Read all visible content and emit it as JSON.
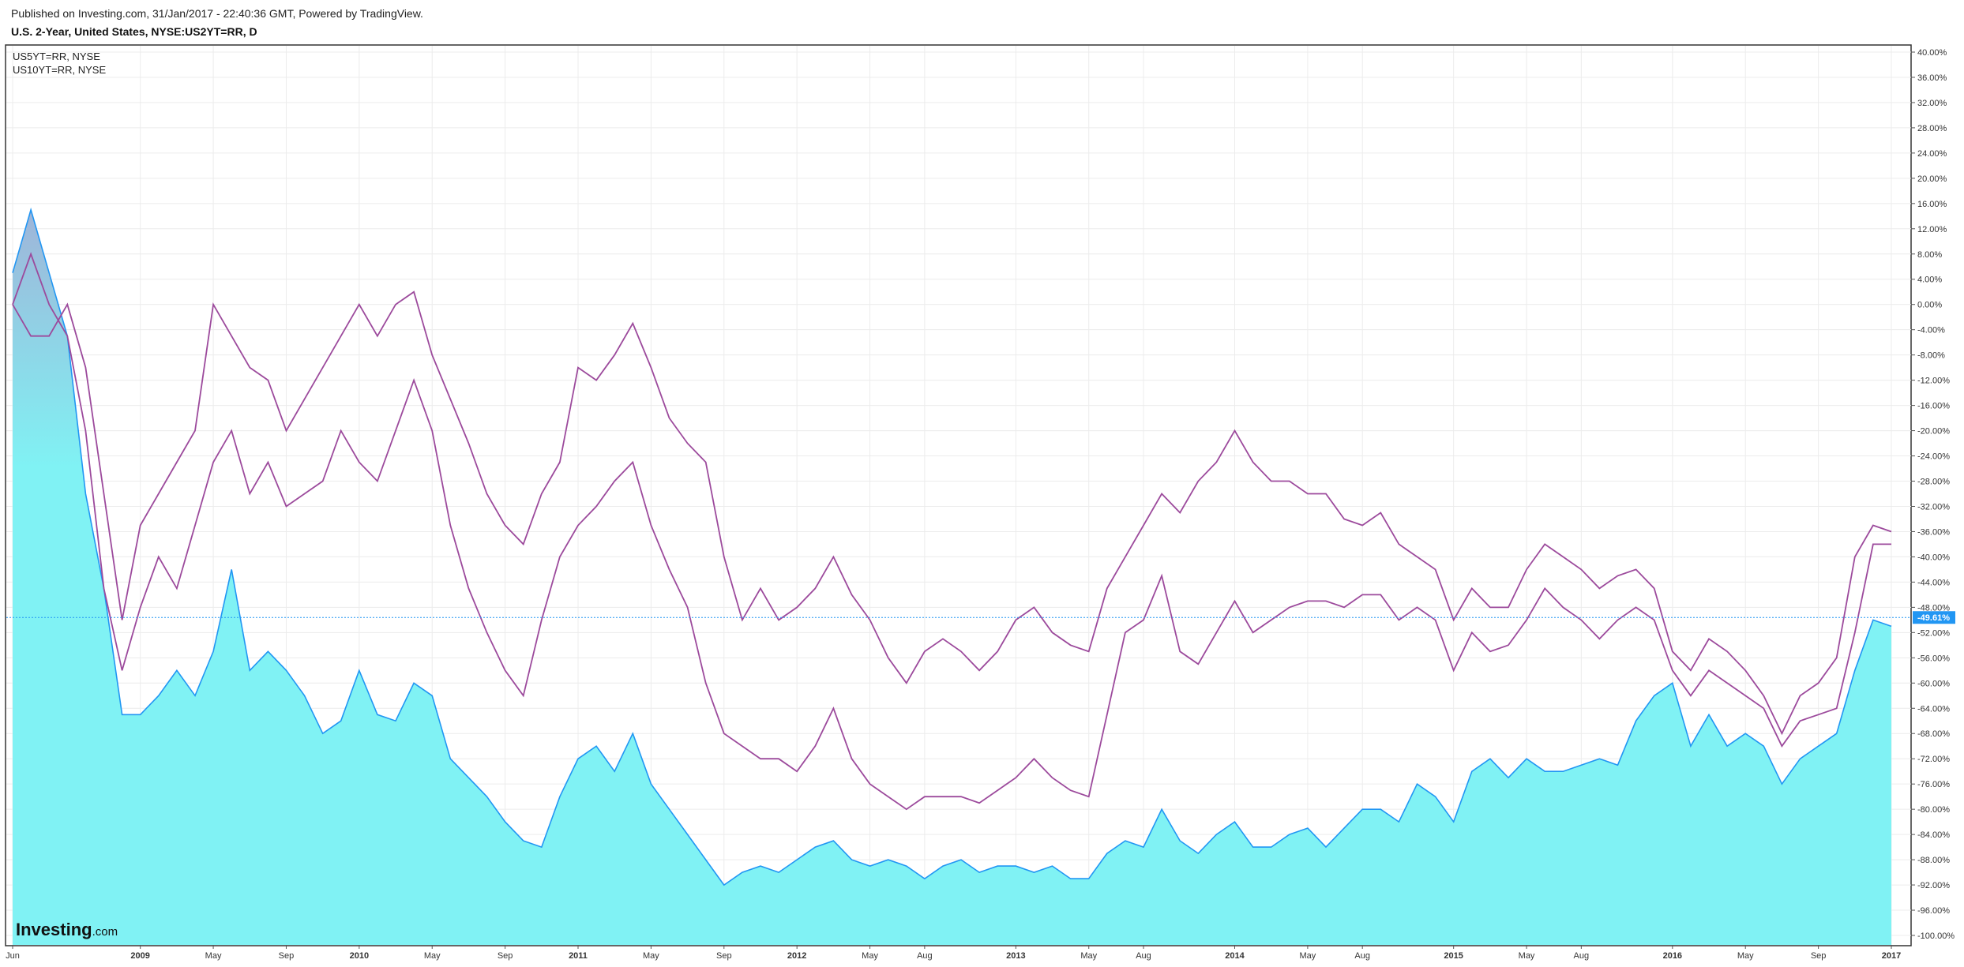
{
  "header": {
    "published": "Published on Investing.com, 31/Jan/2017 - 22:40:36 GMT, Powered by TradingView.",
    "symbol": "U.S. 2-Year, United States, NYSE:US2YT=RR, D"
  },
  "watermark": {
    "brand": "Investing",
    "suffix": ".com"
  },
  "chart_data": {
    "type": "line",
    "x": [
      "2008-06",
      "2008-07",
      "2008-08",
      "2008-09",
      "2008-10",
      "2008-11",
      "2008-12",
      "2009-01",
      "2009-02",
      "2009-03",
      "2009-04",
      "2009-05",
      "2009-06",
      "2009-07",
      "2009-08",
      "2009-09",
      "2009-10",
      "2009-11",
      "2009-12",
      "2010-01",
      "2010-02",
      "2010-03",
      "2010-04",
      "2010-05",
      "2010-06",
      "2010-07",
      "2010-08",
      "2010-09",
      "2010-10",
      "2010-11",
      "2010-12",
      "2011-01",
      "2011-02",
      "2011-03",
      "2011-04",
      "2011-05",
      "2011-06",
      "2011-07",
      "2011-08",
      "2011-09",
      "2011-10",
      "2011-11",
      "2011-12",
      "2012-01",
      "2012-02",
      "2012-03",
      "2012-04",
      "2012-05",
      "2012-06",
      "2012-07",
      "2012-08",
      "2012-09",
      "2012-10",
      "2012-11",
      "2012-12",
      "2013-01",
      "2013-02",
      "2013-03",
      "2013-04",
      "2013-05",
      "2013-06",
      "2013-07",
      "2013-08",
      "2013-09",
      "2013-10",
      "2013-11",
      "2013-12",
      "2014-01",
      "2014-02",
      "2014-03",
      "2014-04",
      "2014-05",
      "2014-06",
      "2014-07",
      "2014-08",
      "2014-09",
      "2014-10",
      "2014-11",
      "2014-12",
      "2015-01",
      "2015-02",
      "2015-03",
      "2015-04",
      "2015-05",
      "2015-06",
      "2015-07",
      "2015-08",
      "2015-09",
      "2015-10",
      "2015-11",
      "2015-12",
      "2016-01",
      "2016-02",
      "2016-03",
      "2016-04",
      "2016-05",
      "2016-06",
      "2016-07",
      "2016-08",
      "2016-09",
      "2016-10",
      "2016-11",
      "2016-12",
      "2017-01"
    ],
    "series": [
      {
        "kind": "area",
        "color": "#2196f3",
        "fill": "#80f2f4",
        "values": [
          5,
          15,
          5,
          -5,
          -30,
          -45,
          -65,
          -65,
          -62,
          -58,
          -62,
          -55,
          -42,
          -58,
          -55,
          -58,
          -62,
          -68,
          -66,
          -58,
          -65,
          -66,
          -60,
          -62,
          -72,
          -75,
          -78,
          -82,
          -85,
          -86,
          -78,
          -72,
          -70,
          -74,
          -68,
          -76,
          -80,
          -84,
          -88,
          -92,
          -90,
          -89,
          -90,
          -88,
          -86,
          -85,
          -88,
          -89,
          -88,
          -89,
          -91,
          -89,
          -88,
          -90,
          -89,
          -89,
          -90,
          -89,
          -91,
          -91,
          -87,
          -85,
          -86,
          -80,
          -85,
          -87,
          -84,
          -82,
          -86,
          -86,
          -84,
          -83,
          -86,
          -83,
          -80,
          -80,
          -82,
          -76,
          -78,
          -82,
          -74,
          -72,
          -75,
          -72,
          -74,
          -74,
          -73,
          -72,
          -73,
          -66,
          -62,
          -60,
          -70,
          -65,
          -70,
          -68,
          -70,
          -76,
          -72,
          -70,
          -68,
          -58,
          -50,
          -51
        ]
      },
      {
        "name": "US5YT=RR, NYSE",
        "color": "#9c4a9c",
        "values": [
          0,
          8,
          0,
          -5,
          -20,
          -45,
          -58,
          -48,
          -40,
          -45,
          -35,
          -25,
          -20,
          -30,
          -25,
          -32,
          -30,
          -28,
          -20,
          -25,
          -28,
          -20,
          -12,
          -20,
          -35,
          -45,
          -52,
          -58,
          -62,
          -50,
          -40,
          -35,
          -32,
          -28,
          -25,
          -35,
          -42,
          -48,
          -60,
          -68,
          -70,
          -72,
          -72,
          -74,
          -70,
          -64,
          -72,
          -76,
          -78,
          -80,
          -78,
          -78,
          -78,
          -79,
          -77,
          -75,
          -72,
          -75,
          -77,
          -78,
          -65,
          -52,
          -50,
          -43,
          -55,
          -57,
          -52,
          -47,
          -52,
          -50,
          -48,
          -47,
          -47,
          -48,
          -46,
          -46,
          -50,
          -48,
          -50,
          -58,
          -52,
          -55,
          -54,
          -50,
          -45,
          -48,
          -50,
          -53,
          -50,
          -48,
          -50,
          -58,
          -62,
          -58,
          -60,
          -62,
          -64,
          -70,
          -66,
          -65,
          -64,
          -52,
          -38,
          -38
        ]
      },
      {
        "name": "US10YT=RR, NYSE",
        "color": "#9c4a9c",
        "values": [
          0,
          -5,
          -5,
          0,
          -10,
          -30,
          -50,
          -35,
          -30,
          -25,
          -20,
          0,
          -5,
          -10,
          -12,
          -20,
          -15,
          -10,
          -5,
          0,
          -5,
          0,
          2,
          -8,
          -15,
          -22,
          -30,
          -35,
          -38,
          -30,
          -25,
          -10,
          -12,
          -8,
          -3,
          -10,
          -18,
          -22,
          -25,
          -40,
          -50,
          -45,
          -50,
          -48,
          -45,
          -40,
          -46,
          -50,
          -56,
          -60,
          -55,
          -53,
          -55,
          -58,
          -55,
          -50,
          -48,
          -52,
          -54,
          -55,
          -45,
          -40,
          -35,
          -30,
          -33,
          -28,
          -25,
          -20,
          -25,
          -28,
          -28,
          -30,
          -30,
          -34,
          -35,
          -33,
          -38,
          -40,
          -42,
          -50,
          -45,
          -48,
          -48,
          -42,
          -38,
          -40,
          -42,
          -45,
          -43,
          -42,
          -45,
          -55,
          -58,
          -53,
          -55,
          -58,
          -62,
          -68,
          -62,
          -60,
          -56,
          -40,
          -35,
          -36
        ]
      }
    ],
    "marker": {
      "value": -49.61,
      "label": "-49.61%"
    },
    "xlim": [
      "2008-06",
      "2017-01"
    ],
    "xticks": [
      {
        "value": "2008-06",
        "label": "Jun"
      },
      {
        "value": "2009-01",
        "label": "2009"
      },
      {
        "value": "2009-05",
        "label": "May"
      },
      {
        "value": "2009-09",
        "label": "Sep"
      },
      {
        "value": "2010-01",
        "label": "2010"
      },
      {
        "value": "2010-05",
        "label": "May"
      },
      {
        "value": "2010-09",
        "label": "Sep"
      },
      {
        "value": "2011-01",
        "label": "2011"
      },
      {
        "value": "2011-05",
        "label": "May"
      },
      {
        "value": "2011-09",
        "label": "Sep"
      },
      {
        "value": "2012-01",
        "label": "2012"
      },
      {
        "value": "2012-05",
        "label": "May"
      },
      {
        "value": "2012-08",
        "label": "Aug"
      },
      {
        "value": "2013-01",
        "label": "2013"
      },
      {
        "value": "2013-05",
        "label": "May"
      },
      {
        "value": "2013-08",
        "label": "Aug"
      },
      {
        "value": "2014-01",
        "label": "2014"
      },
      {
        "value": "2014-05",
        "label": "May"
      },
      {
        "value": "2014-08",
        "label": "Aug"
      },
      {
        "value": "2015-01",
        "label": "2015"
      },
      {
        "value": "2015-05",
        "label": "May"
      },
      {
        "value": "2015-08",
        "label": "Aug"
      },
      {
        "value": "2016-01",
        "label": "2016"
      },
      {
        "value": "2016-05",
        "label": "May"
      },
      {
        "value": "2016-09",
        "label": "Sep"
      },
      {
        "value": "2017-01",
        "label": "2017"
      }
    ],
    "ylim": [
      -101.5,
      41
    ],
    "yticks": [
      {
        "value": 40,
        "label": "40.00%"
      },
      {
        "value": 36,
        "label": "36.00%"
      },
      {
        "value": 32,
        "label": "32.00%"
      },
      {
        "value": 28,
        "label": "28.00%"
      },
      {
        "value": 24,
        "label": "24.00%"
      },
      {
        "value": 20,
        "label": "20.00%"
      },
      {
        "value": 16,
        "label": "16.00%"
      },
      {
        "value": 12,
        "label": "12.00%"
      },
      {
        "value": 8,
        "label": "8.00%"
      },
      {
        "value": 4,
        "label": "4.00%"
      },
      {
        "value": 0,
        "label": "0.00%"
      },
      {
        "value": -4,
        "label": "-4.00%"
      },
      {
        "value": -8,
        "label": "-8.00%"
      },
      {
        "value": -12,
        "label": "-12.00%"
      },
      {
        "value": -16,
        "label": "-16.00%"
      },
      {
        "value": -20,
        "label": "-20.00%"
      },
      {
        "value": -24,
        "label": "-24.00%"
      },
      {
        "value": -28,
        "label": "-28.00%"
      },
      {
        "value": -32,
        "label": "-32.00%"
      },
      {
        "value": -36,
        "label": "-36.00%"
      },
      {
        "value": -40,
        "label": "-40.00%"
      },
      {
        "value": -44,
        "label": "-44.00%"
      },
      {
        "value": -48,
        "label": "-48.00%"
      },
      {
        "value": -52,
        "label": "-52.00%"
      },
      {
        "value": -56,
        "label": "-56.00%"
      },
      {
        "value": -60,
        "label": "-60.00%"
      },
      {
        "value": -64,
        "label": "-64.00%"
      },
      {
        "value": -68,
        "label": "-68.00%"
      },
      {
        "value": -72,
        "label": "-72.00%"
      },
      {
        "value": -76,
        "label": "-76.00%"
      },
      {
        "value": -80,
        "label": "-80.00%"
      },
      {
        "value": -84,
        "label": "-84.00%"
      },
      {
        "value": -88,
        "label": "-88.00%"
      },
      {
        "value": -92,
        "label": "-92.00%"
      },
      {
        "value": -96,
        "label": "-96.00%"
      },
      {
        "value": -100,
        "label": "-100.00%"
      }
    ],
    "grid": true,
    "legend": "top-left"
  }
}
